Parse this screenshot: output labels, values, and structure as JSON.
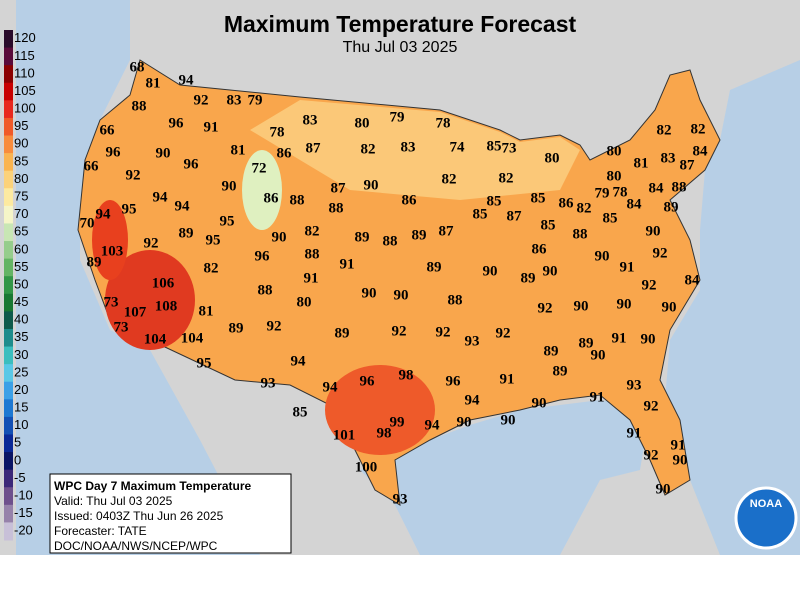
{
  "header": {
    "title": "Maximum Temperature Forecast",
    "subtitle": "Thu Jul 03 2025"
  },
  "legend": {
    "values": [
      120,
      115,
      110,
      105,
      100,
      95,
      90,
      85,
      80,
      75,
      70,
      65,
      60,
      55,
      50,
      45,
      40,
      35,
      30,
      25,
      20,
      15,
      10,
      5,
      0,
      -5,
      -10,
      -15,
      -20
    ],
    "colors": [
      "#2a0a2a",
      "#5a0a3a",
      "#8b0000",
      "#c80000",
      "#e8281e",
      "#f05a28",
      "#f88c3c",
      "#fab450",
      "#fcd27a",
      "#fdeaa0",
      "#f5f5c8",
      "#c8e6b4",
      "#96cd8c",
      "#64b464",
      "#329646",
      "#197832",
      "#0f5a4b",
      "#1e8c8c",
      "#3cbebe",
      "#5ac8e6",
      "#3ca0e6",
      "#1e78d2",
      "#1450b4",
      "#0a2896",
      "#0a1464",
      "#3c2878",
      "#6e508c",
      "#9682aa",
      "#c8c0d8"
    ]
  },
  "temperatures": [
    68,
    81,
    94,
    88,
    92,
    83,
    79,
    96,
    91,
    78,
    83,
    80,
    79,
    78,
    66,
    96,
    90,
    81,
    86,
    87,
    82,
    83,
    74,
    85,
    73,
    80,
    80,
    82,
    82,
    66,
    92,
    96,
    72,
    81,
    83,
    87,
    84,
    90,
    87,
    90,
    82,
    82,
    80,
    84,
    88,
    94,
    94,
    86,
    88,
    88,
    86,
    85,
    85,
    86,
    79,
    78,
    84,
    89,
    70,
    94,
    95,
    95,
    85,
    87,
    85,
    82,
    85,
    92,
    89,
    95,
    90,
    82,
    89,
    88,
    89,
    87,
    86,
    88,
    90,
    103,
    89,
    96,
    88,
    91,
    89,
    90,
    89,
    90,
    90,
    91,
    92,
    82,
    106,
    91,
    88,
    90,
    90,
    88,
    92,
    84,
    73,
    108,
    107,
    81,
    80,
    92,
    90,
    90,
    90,
    73,
    104,
    104,
    89,
    92,
    89,
    92,
    92,
    93,
    92,
    91,
    90,
    89,
    89,
    90,
    95,
    94,
    96,
    98,
    89,
    93,
    94,
    96,
    91,
    93,
    94,
    91,
    90,
    92,
    85,
    101,
    98,
    99,
    94,
    90,
    90,
    91,
    91,
    92,
    90,
    100,
    93,
    90
  ],
  "info": {
    "lines": [
      "WPC Day 7 Maximum Temperature",
      "Valid: Thu Jul 03 2025",
      "Issued: 0403Z Thu Jun 26 2025",
      "Forecaster: TATE",
      "DOC/NOAA/NWS/NCEP/WPC"
    ]
  },
  "logo": "NOAA"
}
